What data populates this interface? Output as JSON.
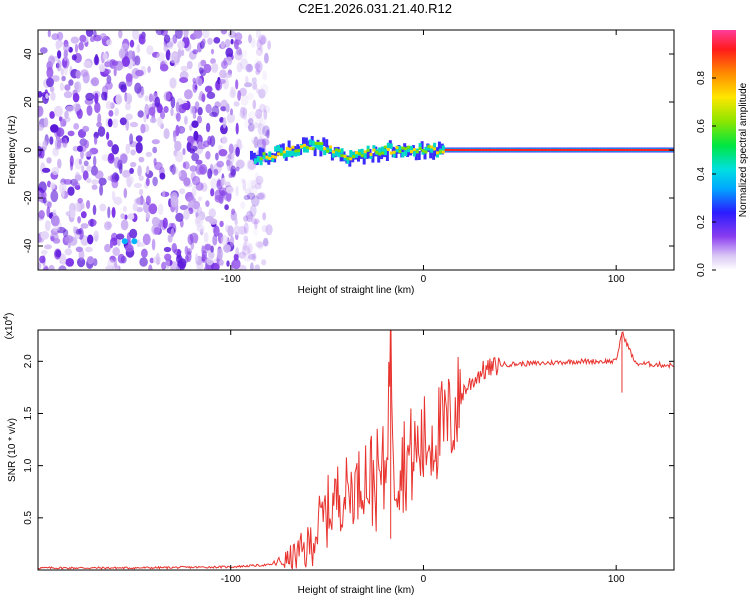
{
  "title": "C2E1.2026.031.21.40.R12",
  "chart_data": [
    {
      "type": "heatmap",
      "xlabel": "Height of straight line (km)",
      "ylabel": "Frequency (Hz)",
      "xlim": [
        -200,
        130
      ],
      "ylim": [
        -50,
        50
      ],
      "xticks": [
        -100,
        0,
        100
      ],
      "yticks": [
        -40,
        -20,
        0,
        20,
        40
      ],
      "colorbar": {
        "label": "Normalized spectral amplitude",
        "range": [
          0,
          1
        ],
        "ticks": [
          0.0,
          0.2,
          0.4,
          0.6,
          0.8
        ]
      },
      "description_points": [
        {
          "x": -90,
          "y": -4,
          "amplitude": 0.5
        },
        {
          "x": -70,
          "y": 0,
          "amplitude": 0.7
        },
        {
          "x": -55,
          "y": 2,
          "amplitude": 0.85
        },
        {
          "x": -40,
          "y": -3,
          "amplitude": 0.55
        },
        {
          "x": -20,
          "y": 0,
          "amplitude": 0.8
        },
        {
          "x": 0,
          "y": 0,
          "amplitude": 0.9
        },
        {
          "x": 50,
          "y": 0,
          "amplitude": 0.95
        },
        {
          "x": 100,
          "y": 0,
          "amplitude": 0.95
        }
      ]
    },
    {
      "type": "line",
      "xlabel": "Height of straight line (km)",
      "ylabel": "SNR (10 * v/v)",
      "scale_label": "(x10",
      "scale_exp": "4",
      "scale_close": ")",
      "xlim": [
        -200,
        130
      ],
      "ylim": [
        0,
        2.3
      ],
      "xticks": [
        -100,
        0,
        100
      ],
      "yticks": [
        0.5,
        1.0,
        1.5,
        2.0
      ],
      "series": [
        {
          "color": "#e8332e",
          "x": [
            -200,
            -150,
            -100,
            -80,
            -70,
            -60,
            -55,
            -50,
            -45,
            -40,
            -35,
            -30,
            -25,
            -20,
            -17,
            -15,
            -10,
            -5,
            0,
            5,
            10,
            15,
            20,
            30,
            40,
            60,
            80,
            100,
            103,
            110,
            120,
            130
          ],
          "y": [
            0.02,
            0.02,
            0.03,
            0.05,
            0.1,
            0.2,
            0.4,
            0.55,
            0.7,
            0.75,
            0.8,
            0.9,
            0.85,
            0.9,
            2.15,
            1.0,
            1.05,
            1.1,
            1.2,
            1.3,
            1.35,
            1.45,
            1.7,
            1.9,
            1.97,
            1.98,
            2.0,
            2.0,
            2.28,
            1.98,
            1.97,
            1.96
          ]
        }
      ]
    }
  ]
}
